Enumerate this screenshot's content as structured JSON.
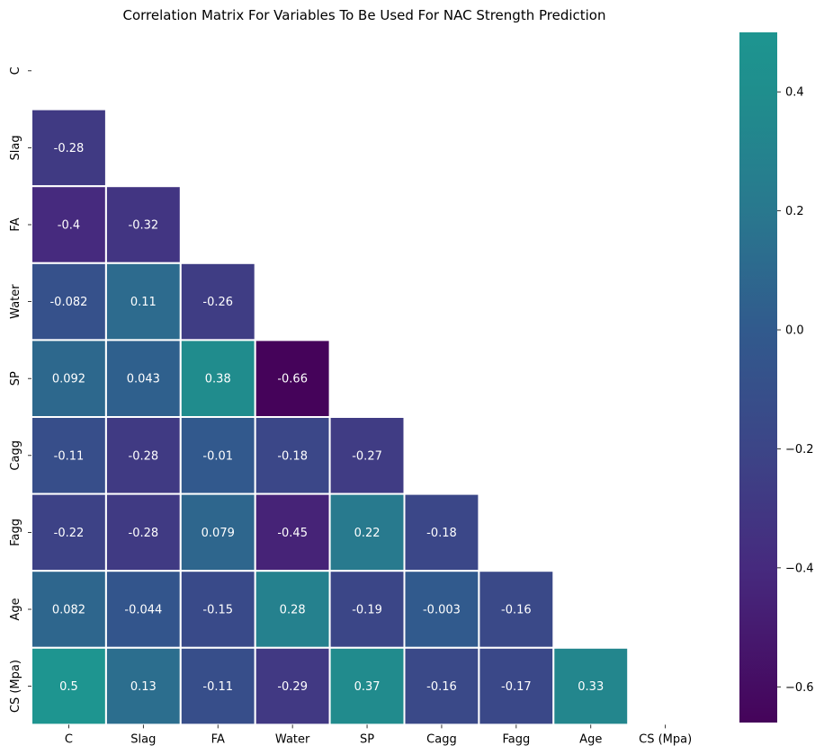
{
  "chart_data": {
    "type": "heatmap",
    "title": "Correlation Matrix For Variables To Be Used For NAC Strength Prediction",
    "xlabel": "",
    "ylabel": "",
    "labels": [
      "C",
      "Slag",
      "FA",
      "Water",
      "SP",
      "Cagg",
      "Fagg",
      "Age",
      "CS (Mpa)"
    ],
    "mask": "upper-triangle-including-diagonal",
    "matrix": [
      [
        null,
        null,
        null,
        null,
        null,
        null,
        null,
        null,
        null
      ],
      [
        -0.28,
        null,
        null,
        null,
        null,
        null,
        null,
        null,
        null
      ],
      [
        -0.4,
        -0.32,
        null,
        null,
        null,
        null,
        null,
        null,
        null
      ],
      [
        -0.082,
        0.11,
        -0.26,
        null,
        null,
        null,
        null,
        null,
        null
      ],
      [
        0.092,
        0.043,
        0.38,
        -0.66,
        null,
        null,
        null,
        null,
        null
      ],
      [
        -0.11,
        -0.28,
        -0.01,
        -0.18,
        -0.27,
        null,
        null,
        null,
        null
      ],
      [
        -0.22,
        -0.28,
        0.079,
        -0.45,
        0.22,
        -0.18,
        null,
        null,
        null
      ],
      [
        0.082,
        -0.044,
        -0.15,
        0.28,
        -0.19,
        -0.003,
        -0.16,
        null,
        null
      ],
      [
        0.5,
        0.13,
        -0.11,
        -0.29,
        0.37,
        -0.16,
        -0.17,
        0.33,
        null
      ]
    ],
    "annotations": [
      [
        null,
        null,
        null,
        null,
        null,
        null,
        null,
        null,
        null
      ],
      [
        "-0.28",
        null,
        null,
        null,
        null,
        null,
        null,
        null,
        null
      ],
      [
        "-0.4",
        "-0.32",
        null,
        null,
        null,
        null,
        null,
        null,
        null
      ],
      [
        "-0.082",
        "0.11",
        "-0.26",
        null,
        null,
        null,
        null,
        null,
        null
      ],
      [
        "0.092",
        "0.043",
        "0.38",
        "-0.66",
        null,
        null,
        null,
        null,
        null
      ],
      [
        "-0.11",
        "-0.28",
        "-0.01",
        "-0.18",
        "-0.27",
        null,
        null,
        null,
        null
      ],
      [
        "-0.22",
        "-0.28",
        "0.079",
        "-0.45",
        "0.22",
        "-0.18",
        null,
        null,
        null
      ],
      [
        "0.082",
        "-0.044",
        "-0.15",
        "0.28",
        "-0.19",
        "-0.003",
        "-0.16",
        null,
        null
      ],
      [
        "0.5",
        "0.13",
        "-0.11",
        "-0.29",
        "0.37",
        "-0.16",
        "-0.17",
        "0.33",
        null
      ]
    ],
    "colorbar": {
      "range": [
        -0.66,
        0.5
      ],
      "ticks": [
        0.4,
        0.2,
        0.0,
        -0.2,
        -0.4,
        -0.6
      ],
      "tick_labels": [
        "0.4",
        "0.2",
        "0.0",
        "−0.2",
        "−0.4",
        "−0.6"
      ]
    },
    "colormap": {
      "name": "viridis-like (purple to teal)",
      "stops": [
        {
          "value": -0.66,
          "color": "#45035a"
        },
        {
          "value": -0.4,
          "color": "#462a7e"
        },
        {
          "value": -0.2,
          "color": "#3c4587"
        },
        {
          "value": 0.0,
          "color": "#315a8d"
        },
        {
          "value": 0.2,
          "color": "#29788e"
        },
        {
          "value": 0.4,
          "color": "#1f8e8d"
        },
        {
          "value": 0.5,
          "color": "#1e9590"
        }
      ]
    },
    "cell_border_color": "#ffffff",
    "grid": false,
    "legend": "colorbar-right"
  }
}
